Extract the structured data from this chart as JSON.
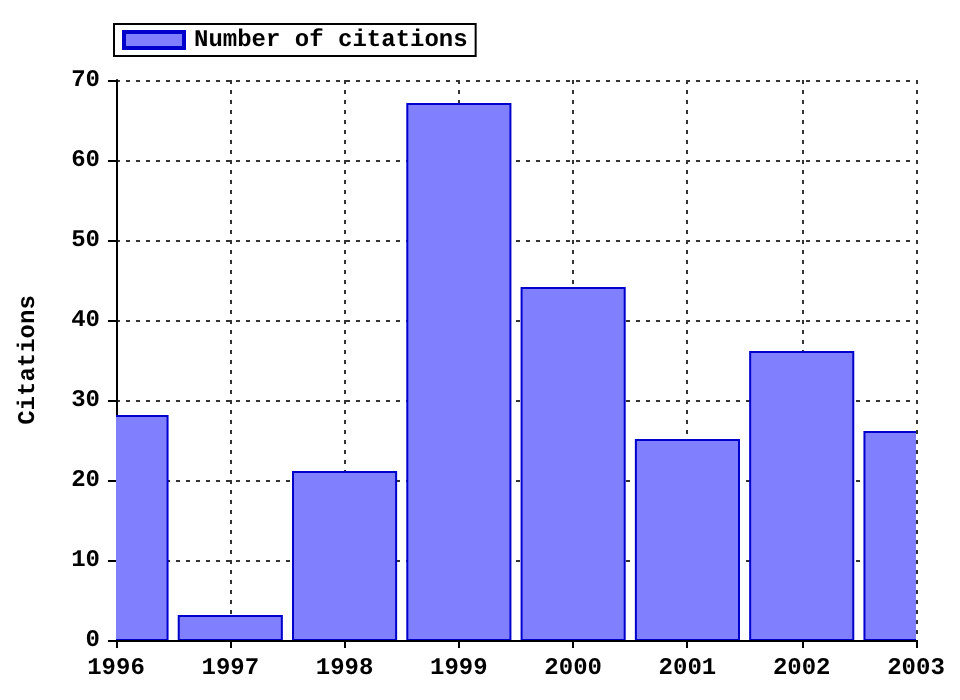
{
  "chart_data": {
    "type": "bar",
    "ylabel": "Citations",
    "x": [
      1996,
      1997,
      1998,
      1999,
      2000,
      2001,
      2002,
      2003
    ],
    "series": [
      {
        "name": "Number of citations",
        "color": "#8080ff",
        "values": [
          28,
          3,
          21,
          67,
          44,
          25,
          36,
          26
        ]
      }
    ],
    "xlim": [
      1996,
      2003
    ],
    "xticks": [
      1996,
      1997,
      1998,
      1999,
      2000,
      2001,
      2002,
      2003
    ],
    "ylim": [
      0,
      70
    ],
    "yticks": [
      0,
      10,
      20,
      30,
      40,
      50,
      60,
      70
    ],
    "grid": true,
    "legend": "top left"
  }
}
